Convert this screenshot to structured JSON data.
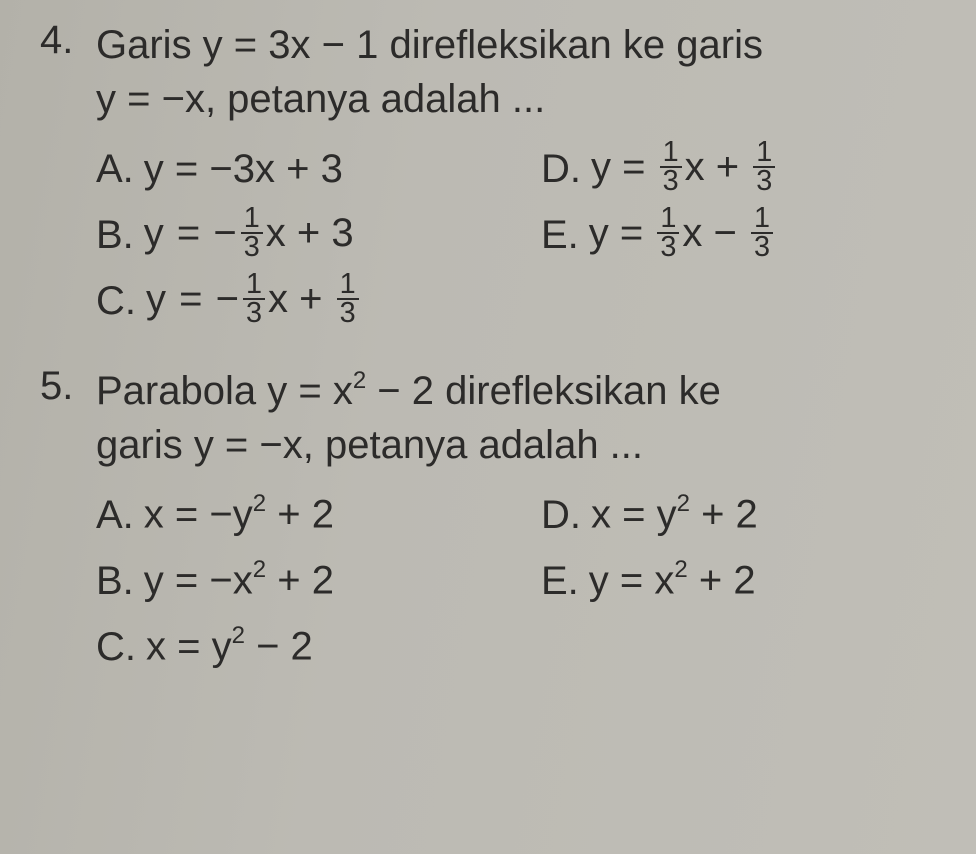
{
  "questions": [
    {
      "number": "4.",
      "stem_line1": "Garis y = 3x − 1 direfleksikan ke garis",
      "stem_line2": "y = −x, petanya adalah ...",
      "choices": {
        "A": {
          "label": "A.",
          "prefix": "y = −3x + 3"
        },
        "D": {
          "label": "D.",
          "prefix": "y = ",
          "frac1_num": "1",
          "frac1_den": "3",
          "mid": "x + ",
          "frac2_num": "1",
          "frac2_den": "3"
        },
        "B": {
          "label": "B.",
          "prefix": "y = −",
          "frac1_num": "1",
          "frac1_den": "3",
          "mid": "x + 3"
        },
        "E": {
          "label": "E.",
          "prefix": "y = ",
          "frac1_num": "1",
          "frac1_den": "3",
          "mid": "x − ",
          "frac2_num": "1",
          "frac2_den": "3"
        },
        "C": {
          "label": "C.",
          "prefix": "y = −",
          "frac1_num": "1",
          "frac1_den": "3",
          "mid": "x + ",
          "frac2_num": "1",
          "frac2_den": "3"
        }
      }
    },
    {
      "number": "5.",
      "stem_line1_pre": "Parabola y = x",
      "stem_line1_sup": "2",
      "stem_line1_post": " − 2 direfleksikan ke",
      "stem_line2": "garis y = −x, petanya adalah ...",
      "choices": {
        "A": {
          "label": "A.",
          "pre": "x = −y",
          "sup": "2",
          "post": " + 2"
        },
        "D": {
          "label": "D.",
          "pre": "x = y",
          "sup": "2",
          "post": " + 2"
        },
        "B": {
          "label": "B.",
          "pre": "y = −x",
          "sup": "2",
          "post": " + 2"
        },
        "E": {
          "label": "E.",
          "pre": "y = x",
          "sup": "2",
          "post": " + 2"
        },
        "C": {
          "label": "C.",
          "pre": "x = y",
          "sup": "2",
          "post": " − 2"
        }
      }
    }
  ],
  "colors": {
    "text": "#2c2b2a",
    "background": "#b8b6af"
  }
}
